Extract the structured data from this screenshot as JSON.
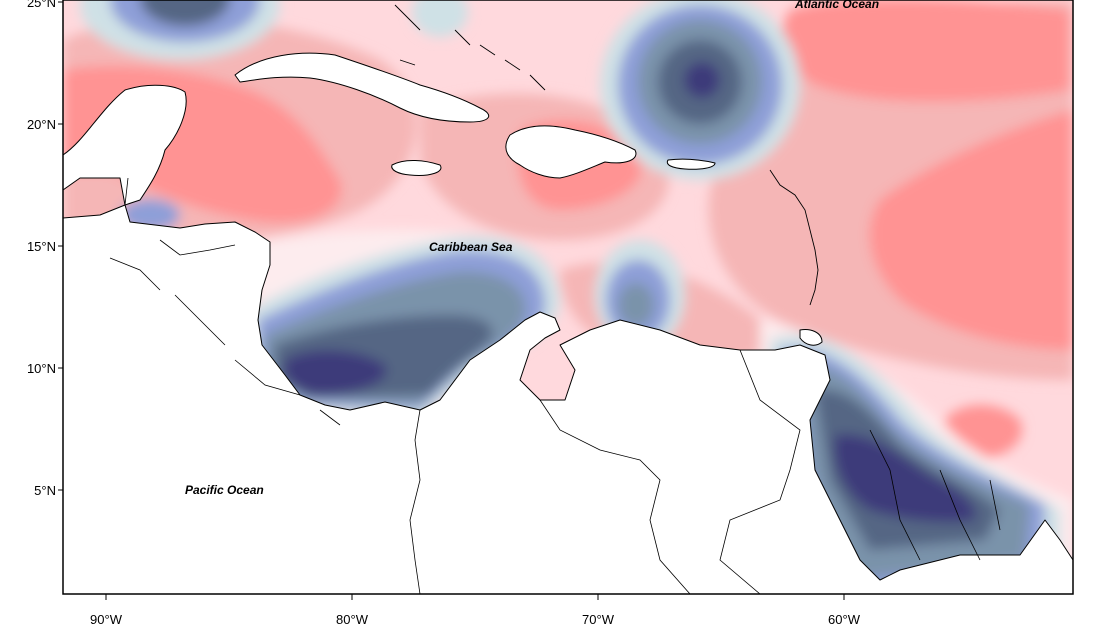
{
  "colors": {
    "background": "#ffffff",
    "land": "#ffffff",
    "outline": "#000000",
    "scale": {
      "pos_high": "#ff9393",
      "pos_mid": "#f5b6b6",
      "pos_low": "#ffd9dd",
      "near_zero": "#fdecee",
      "neg_low": "#cfe1e6",
      "neg_mid": "#8e9fd8",
      "neg_strong": "#7a93aa",
      "neg_higher": "#556684",
      "neg_max": "#3c3a7a"
    }
  },
  "labels": {
    "atlantic": "Atlantic Ocean",
    "caribbean": "Caribbean Sea",
    "pacific": "Pacific Ocean"
  },
  "axes": {
    "y_ticks": [
      {
        "lat": 25,
        "label": "25°N"
      },
      {
        "lat": 20,
        "label": "20°N"
      },
      {
        "lat": 15,
        "label": "15°N"
      },
      {
        "lat": 10,
        "label": "10°N"
      },
      {
        "lat": 5,
        "label": "5°N"
      }
    ],
    "x_ticks": [
      {
        "lon": -90,
        "label": "90°W"
      },
      {
        "lon": -80,
        "label": "80°W"
      },
      {
        "lon": -70,
        "label": "70°W"
      },
      {
        "lon": -60,
        "label": "60°W"
      }
    ]
  }
}
